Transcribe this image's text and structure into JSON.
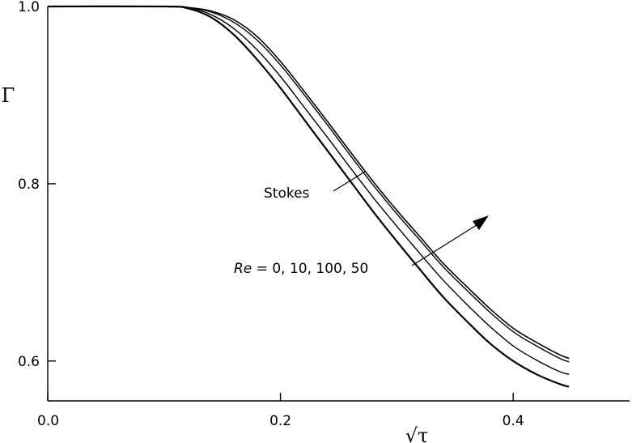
{
  "chart_data": {
    "type": "line",
    "title": "",
    "xlabel": "√τ",
    "ylabel": "Γ",
    "xlim": [
      0.0,
      0.5
    ],
    "ylim": [
      0.555,
      1.0
    ],
    "x_ticks": [
      0.0,
      0.2,
      0.4
    ],
    "x_tick_labels": [
      "0.0",
      "0.2",
      "0.4"
    ],
    "y_ticks": [
      0.6,
      0.8,
      1.0
    ],
    "y_tick_labels": [
      "0.6",
      "0.8",
      "1.0"
    ],
    "grid": false,
    "legend": "none",
    "x": [
      0.0,
      0.1,
      0.12,
      0.14,
      0.16,
      0.18,
      0.2,
      0.22,
      0.24,
      0.26,
      0.28,
      0.3,
      0.32,
      0.34,
      0.36,
      0.38,
      0.4,
      0.42,
      0.44,
      0.448
    ],
    "series": [
      {
        "values": [
          1.0,
          1.0,
          0.998,
          0.988,
          0.968,
          0.94,
          0.908,
          0.873,
          0.838,
          0.803,
          0.768,
          0.735,
          0.703,
          0.672,
          0.645,
          0.62,
          0.6,
          0.585,
          0.574,
          0.571
        ]
      },
      {
        "values": [
          1.0,
          1.0,
          0.999,
          0.991,
          0.975,
          0.951,
          0.921,
          0.887,
          0.853,
          0.818,
          0.784,
          0.752,
          0.721,
          0.691,
          0.664,
          0.639,
          0.617,
          0.601,
          0.588,
          0.585
        ]
      },
      {
        "values": [
          1.0,
          1.0,
          0.999,
          0.994,
          0.982,
          0.962,
          0.934,
          0.901,
          0.867,
          0.832,
          0.798,
          0.766,
          0.736,
          0.706,
          0.68,
          0.655,
          0.633,
          0.617,
          0.603,
          0.599
        ]
      },
      {
        "values": [
          1.0,
          1.0,
          0.999,
          0.995,
          0.985,
          0.966,
          0.938,
          0.905,
          0.871,
          0.836,
          0.802,
          0.77,
          0.74,
          0.71,
          0.684,
          0.659,
          0.637,
          0.621,
          0.607,
          0.603
        ]
      }
    ],
    "annotations": [
      {
        "label": "Stokes",
        "arrow": false
      },
      {
        "label_prefix": "Re",
        "label_rest": " = 0, 10, 100, 50",
        "arrow": true
      }
    ]
  }
}
